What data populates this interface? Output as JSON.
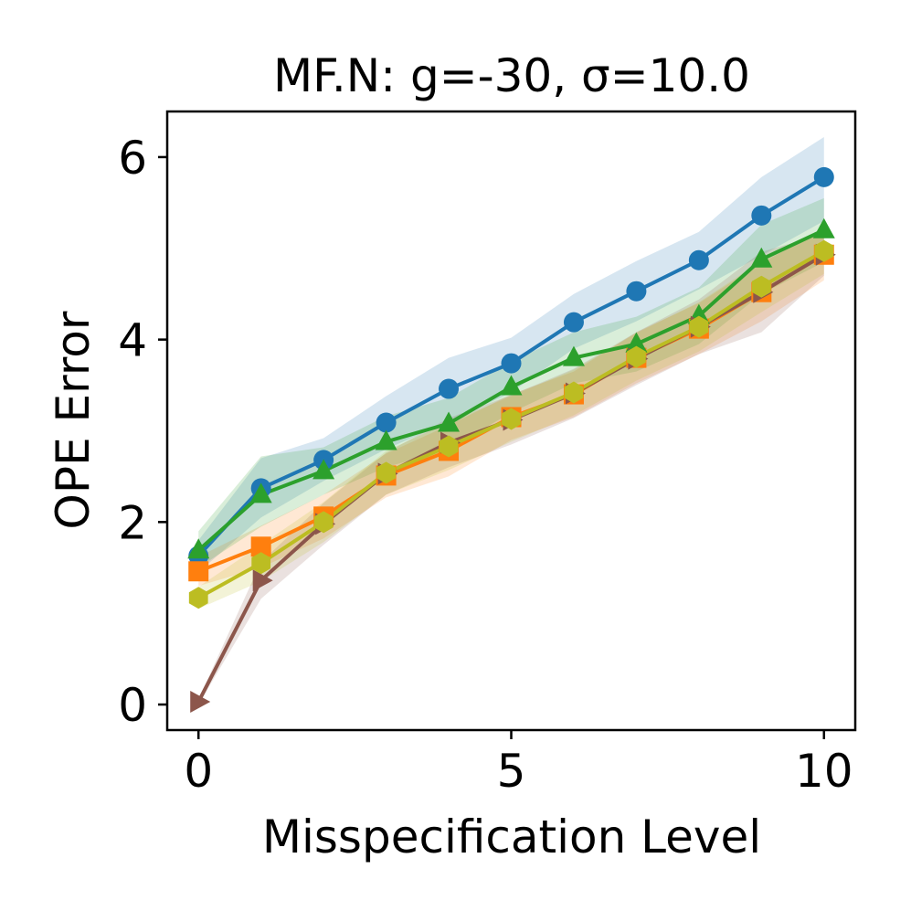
{
  "chart_data": {
    "type": "line",
    "title": "MF.N: g=-30, σ=10.0",
    "xlabel": "Misspecification Level",
    "ylabel": "OPE Error",
    "xlim": [
      -0.5,
      10.5
    ],
    "ylim": [
      -0.28,
      6.5
    ],
    "xticks": [
      0,
      5,
      10
    ],
    "yticks": [
      0,
      2,
      4,
      6
    ],
    "grid": false,
    "legend": "none",
    "x": [
      0,
      1,
      2,
      3,
      4,
      5,
      6,
      7,
      8,
      9,
      10
    ],
    "series": [
      {
        "name": "series-blue",
        "color": "#1f77b4",
        "marker": "circle",
        "values": [
          1.63,
          2.37,
          2.68,
          3.09,
          3.46,
          3.74,
          4.19,
          4.53,
          4.87,
          5.36,
          5.78
        ],
        "lower": [
          1.45,
          2.05,
          2.45,
          2.8,
          3.1,
          3.42,
          3.9,
          4.2,
          4.55,
          4.92,
          5.3
        ],
        "upper": [
          1.8,
          2.7,
          2.92,
          3.38,
          3.8,
          4.02,
          4.5,
          4.86,
          5.18,
          5.78,
          6.22
        ]
      },
      {
        "name": "series-orange",
        "color": "#ff7f0e",
        "marker": "square",
        "values": [
          1.46,
          1.73,
          2.06,
          2.51,
          2.78,
          3.15,
          3.4,
          3.8,
          4.12,
          4.52,
          4.93
        ],
        "lower": [
          1.3,
          1.5,
          1.82,
          2.27,
          2.5,
          2.9,
          3.15,
          3.52,
          3.84,
          4.2,
          4.65
        ],
        "upper": [
          1.62,
          1.96,
          2.3,
          2.75,
          3.06,
          3.4,
          3.65,
          4.08,
          4.4,
          4.84,
          5.21
        ]
      },
      {
        "name": "series-green",
        "color": "#2ca02c",
        "marker": "triangle-up",
        "values": [
          1.69,
          2.3,
          2.56,
          2.88,
          3.08,
          3.48,
          3.8,
          3.95,
          4.26,
          4.88,
          5.2
        ],
        "lower": [
          1.5,
          1.95,
          2.3,
          2.6,
          2.8,
          3.2,
          3.52,
          3.65,
          3.95,
          4.5,
          4.85
        ],
        "upper": [
          1.9,
          2.72,
          2.82,
          3.16,
          3.36,
          3.76,
          4.08,
          4.25,
          4.57,
          5.26,
          5.55
        ]
      },
      {
        "name": "series-brown",
        "color": "#8c564b",
        "marker": "triangle-right",
        "values": [
          0.03,
          1.36,
          1.98,
          2.53,
          2.87,
          3.12,
          3.41,
          3.79,
          4.14,
          4.52,
          4.93
        ],
        "lower": [
          0.0,
          1.16,
          1.75,
          2.3,
          2.6,
          2.85,
          3.14,
          3.5,
          3.84,
          4.08,
          4.7
        ],
        "upper": [
          0.06,
          1.56,
          2.21,
          2.76,
          3.14,
          3.39,
          3.68,
          4.08,
          4.44,
          4.96,
          5.16
        ]
      },
      {
        "name": "series-olive",
        "color": "#bcbd22",
        "marker": "hexagon",
        "values": [
          1.17,
          1.55,
          2.0,
          2.54,
          2.83,
          3.13,
          3.42,
          3.81,
          4.14,
          4.58,
          4.97
        ],
        "lower": [
          1.05,
          1.35,
          1.78,
          2.3,
          2.57,
          2.88,
          3.17,
          3.55,
          3.87,
          4.3,
          4.72
        ],
        "upper": [
          1.29,
          1.75,
          2.22,
          2.78,
          3.09,
          3.38,
          3.67,
          4.07,
          4.41,
          4.86,
          5.22
        ]
      }
    ]
  }
}
